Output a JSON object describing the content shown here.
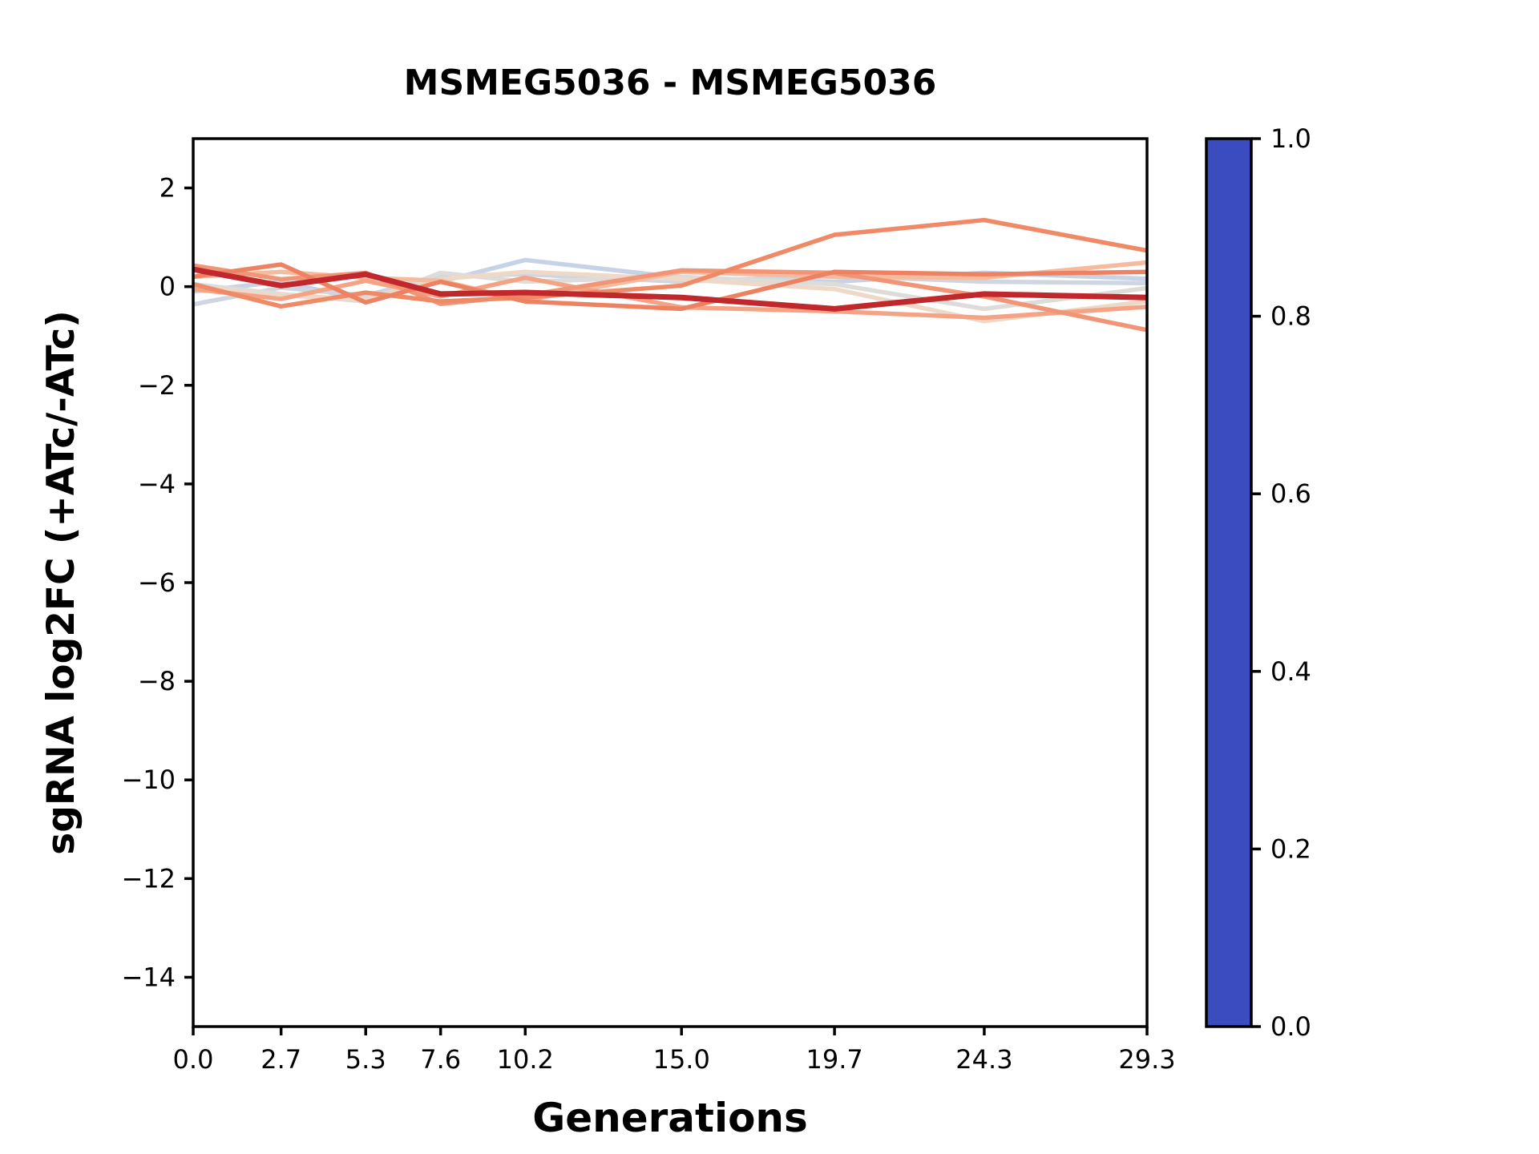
{
  "chart_data": {
    "type": "line",
    "title": "MSMEG5036 - MSMEG5036",
    "xlabel": "Generations",
    "ylabel": "sgRNA log2FC (+ATc/-ATc)",
    "xlim": [
      0,
      29.3
    ],
    "ylim": [
      -15,
      3
    ],
    "grid": false,
    "x": [
      0.0,
      2.7,
      5.3,
      7.6,
      10.2,
      15.0,
      19.7,
      24.3,
      29.3
    ],
    "xtick_labels": [
      "0.0",
      "2.7",
      "5.3",
      "7.6",
      "10.2",
      "15.0",
      "19.7",
      "24.3",
      "29.3"
    ],
    "ytick_values": [
      2,
      0,
      -2,
      -4,
      -6,
      -8,
      -10,
      -12,
      -14
    ],
    "ytick_labels": [
      "2",
      "0",
      "−2",
      "−4",
      "−6",
      "−8",
      "−10",
      "−12",
      "−14"
    ],
    "series": [
      {
        "name": "line-1",
        "colormap_value": 0.4,
        "color": "#c8d2e6",
        "line_width": 5.5,
        "values": [
          -0.1,
          0.1,
          -0.28,
          0.1,
          0.54,
          0.18,
          0.1,
          0.28,
          0.16
        ]
      },
      {
        "name": "line-2",
        "colormap_value": 0.46,
        "color": "#ced6e2",
        "line_width": 5.5,
        "values": [
          -0.36,
          -0.02,
          -0.18,
          0.22,
          0.25,
          0.1,
          0.22,
          0.1,
          0.07
        ]
      },
      {
        "name": "line-3",
        "colormap_value": 0.52,
        "color": "#dedcd8",
        "line_width": 5.5,
        "values": [
          0.05,
          -0.15,
          -0.3,
          0.28,
          0.1,
          0.2,
          0.05,
          -0.45,
          -0.03
        ]
      },
      {
        "name": "line-4",
        "colormap_value": 0.6,
        "color": "#eed9c8",
        "line_width": 5.5,
        "values": [
          0.0,
          -0.18,
          -0.25,
          0.15,
          0.3,
          0.15,
          -0.05,
          -0.7,
          -0.3
        ]
      },
      {
        "name": "line-5",
        "colormap_value": 0.66,
        "color": "#f6bb9e",
        "line_width": 5.5,
        "values": [
          0.2,
          0.3,
          0.18,
          0.12,
          -0.28,
          0.3,
          0.2,
          0.18,
          0.49
        ]
      },
      {
        "name": "line-6",
        "colormap_value": 0.72,
        "color": "#f4a485",
        "line_width": 5.5,
        "values": [
          -0.05,
          -0.25,
          0.12,
          -0.2,
          0.18,
          -0.42,
          -0.5,
          -0.63,
          -0.41
        ]
      },
      {
        "name": "line-7",
        "colormap_value": 0.78,
        "color": "#f29476",
        "line_width": 5.5,
        "values": [
          0.43,
          0.15,
          0.28,
          -0.35,
          -0.18,
          0.33,
          0.28,
          -0.2,
          -0.88
        ]
      },
      {
        "name": "line-8",
        "colormap_value": 0.82,
        "color": "#f08a66",
        "line_width": 5.5,
        "values": [
          0.05,
          -0.4,
          -0.12,
          -0.3,
          -0.22,
          0.02,
          1.05,
          1.35,
          0.73
        ]
      },
      {
        "name": "line-9",
        "colormap_value": 0.88,
        "color": "#ed8263",
        "line_width": 5.5,
        "values": [
          0.2,
          0.45,
          -0.32,
          0.1,
          -0.3,
          -0.45,
          0.3,
          0.25,
          0.3
        ]
      },
      {
        "name": "line-10",
        "colormap_value": 1.0,
        "color": "#c0282c",
        "line_width": 7.0,
        "values": [
          0.35,
          0.02,
          0.25,
          -0.15,
          -0.12,
          -0.22,
          -0.45,
          -0.15,
          -0.22
        ]
      }
    ],
    "colorbar": {
      "colormap": "coolwarm",
      "min": 0.0,
      "max": 1.0,
      "tick_values": [
        0.0,
        0.2,
        0.4,
        0.6,
        0.8,
        1.0
      ],
      "tick_labels": [
        "0.0",
        "0.2",
        "0.4",
        "0.6",
        "0.8",
        "1.0"
      ],
      "gradient_stops": [
        [
          0.0,
          "#3b4cc0"
        ],
        [
          0.125,
          "#5171e2"
        ],
        [
          0.25,
          "#7c9ff9"
        ],
        [
          0.375,
          "#a9c2fe"
        ],
        [
          0.5,
          "#dddddd"
        ],
        [
          0.625,
          "#f5bda4"
        ],
        [
          0.75,
          "#f49a7b"
        ],
        [
          0.875,
          "#db5e4b"
        ],
        [
          1.0,
          "#b40426"
        ]
      ]
    }
  }
}
